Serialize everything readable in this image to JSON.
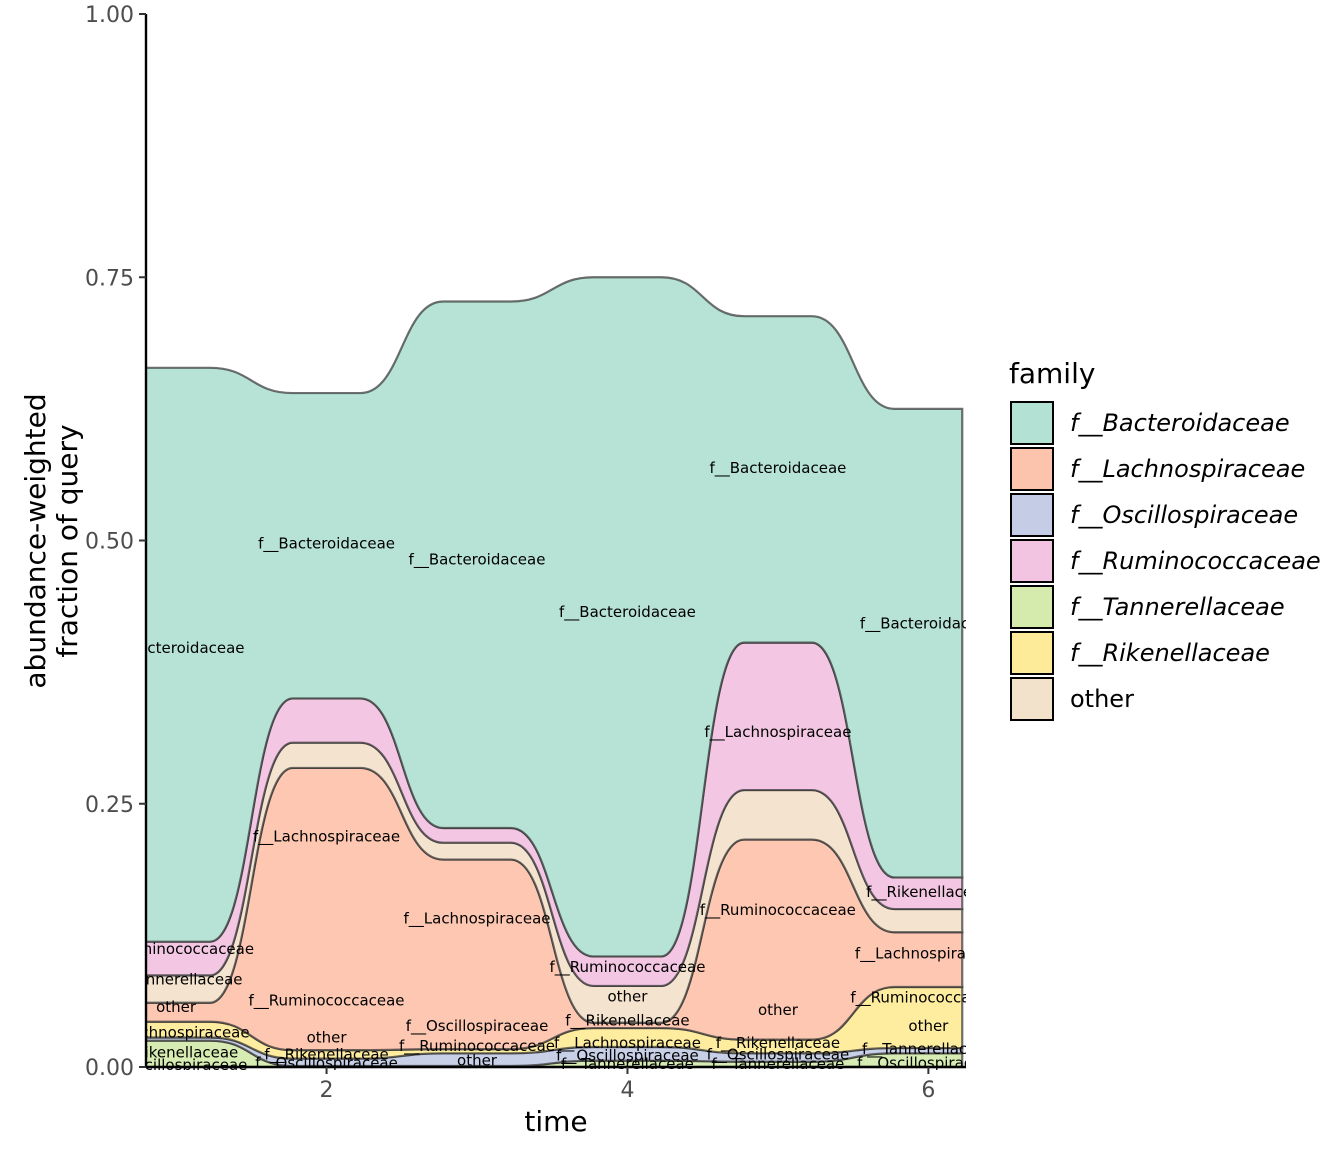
{
  "colors": {
    "f__Bacteroidaceae": "#b3e2d4",
    "f__Lachnospiraceae": "#fdc4ad",
    "f__Oscillospiraceae": "#c5cde6",
    "f__Ruminococcaceae": "#f2c4e2",
    "f__Tannerellaceae": "#d5ebae",
    "f__Rikenellaceae": "#feeb9a",
    "other": "#f3e2cb"
  },
  "chart_data": {
    "type": "area",
    "xlabel": "time",
    "ylabel_lines": [
      "abundance-weighted",
      "fraction of query"
    ],
    "xlim": [
      0.8,
      6.25
    ],
    "ylim": [
      0,
      1
    ],
    "x_ticks": [
      2,
      4,
      6
    ],
    "x_tick_labels": [
      "2",
      "4",
      "6"
    ],
    "y_ticks": [
      0,
      0.25,
      0.5,
      0.75,
      1
    ],
    "y_tick_labels": [
      "0.00",
      "0.25",
      "0.50",
      "0.75",
      "1.00"
    ],
    "x": [
      1,
      2,
      3,
      4,
      5,
      6
    ],
    "stack_order": [
      "f__Tannerellaceae",
      "f__Oscillospiraceae",
      "f__Rikenellaceae",
      "f__Lachnospiraceae",
      "other",
      "f__Ruminococcaceae",
      "f__Bacteroidaceae"
    ],
    "series": [
      {
        "name": "f__Bacteroidaceae",
        "values": [
          0.545,
          0.29,
          0.5,
          0.645,
          0.31,
          0.445
        ]
      },
      {
        "name": "f__Lachnospiraceae",
        "values": [
          0.018,
          0.268,
          0.18,
          0.005,
          0.19,
          0.052
        ]
      },
      {
        "name": "f__Oscillospiraceae",
        "values": [
          0.003,
          0.007,
          0.012,
          0.013,
          0.008,
          0.005
        ]
      },
      {
        "name": "f__Ruminococcaceae",
        "values": [
          0.032,
          0.042,
          0.014,
          0.028,
          0.14,
          0.03
        ]
      },
      {
        "name": "f__Tannerellaceae",
        "values": [
          0.025,
          0.001,
          0.001,
          0.006,
          0.005,
          0.013
        ]
      },
      {
        "name": "f__Rikenellaceae",
        "values": [
          0.015,
          0.008,
          0.004,
          0.018,
          0.013,
          0.058
        ]
      },
      {
        "name": "other",
        "values": [
          0.026,
          0.024,
          0.016,
          0.035,
          0.047,
          0.022
        ]
      }
    ],
    "flow_labels": [
      {
        "text": "f__Bacteroidaceae",
        "x": 1,
        "y": 0.398
      },
      {
        "text": "f__Bacteroidaceae",
        "x": 2,
        "y": 0.497
      },
      {
        "text": "f__Bacteroidaceae",
        "x": 3,
        "y": 0.482
      },
      {
        "text": "f__Bacteroidaceae",
        "x": 4,
        "y": 0.432
      },
      {
        "text": "f__Bacteroidaceae",
        "x": 5,
        "y": 0.569
      },
      {
        "text": "f__Bacteroidaceae",
        "x": 6,
        "y": 0.421
      },
      {
        "text": "f__Lachnospiraceae",
        "x": 2,
        "y": 0.219
      },
      {
        "text": "f__Lachnospiraceae",
        "x": 3,
        "y": 0.141
      },
      {
        "text": "f__Lachnospiraceae",
        "x": 5,
        "y": 0.318
      },
      {
        "text": "f__Lachnospiraceae",
        "x": 6,
        "y": 0.108
      },
      {
        "text": "f__Lachnospiraceae",
        "x": 1,
        "y": 0.033
      },
      {
        "text": "f__Lachnospiraceae",
        "x": 4,
        "y": 0.023
      },
      {
        "text": "f__Ruminococcaceae",
        "x": 1,
        "y": 0.112
      },
      {
        "text": "f__Ruminococcaceae",
        "x": 2,
        "y": 0.063
      },
      {
        "text": "f__Ruminococcaceae",
        "x": 3,
        "y": 0.02
      },
      {
        "text": "f__Ruminococcaceae",
        "x": 4,
        "y": 0.095
      },
      {
        "text": "f__Ruminococcaceae",
        "x": 5,
        "y": 0.149
      },
      {
        "text": "f__Ruminococcaceae",
        "x": 6,
        "y": 0.066
      },
      {
        "text": "f__Tannerellaceae",
        "x": 1,
        "y": 0.083
      },
      {
        "text": "f__Tannerellaceae",
        "x": 4,
        "y": 0.003
      },
      {
        "text": "f__Tannerellaceae",
        "x": 5,
        "y": 0.003
      },
      {
        "text": "f__Tannerellaceae",
        "x": 6,
        "y": 0.017
      },
      {
        "text": "f__Oscillospiraceae",
        "x": 1,
        "y": 0.002
      },
      {
        "text": "f__Oscillospiraceae",
        "x": 2,
        "y": 0.004
      },
      {
        "text": "f__Oscillospiraceae",
        "x": 3,
        "y": 0.039
      },
      {
        "text": "f__Oscillospiraceae",
        "x": 4,
        "y": 0.011
      },
      {
        "text": "f__Oscillospiraceae",
        "x": 5,
        "y": 0.012
      },
      {
        "text": "f__Oscillospiraceae",
        "x": 6,
        "y": 0.004
      },
      {
        "text": "f__Rikenellaceae",
        "x": 1,
        "y": 0.014
      },
      {
        "text": "f__Rikenellaceae",
        "x": 2,
        "y": 0.012
      },
      {
        "text": "f__Rikenellaceae",
        "x": 4,
        "y": 0.044
      },
      {
        "text": "f__Rikenellaceae",
        "x": 5,
        "y": 0.023
      },
      {
        "text": "f__Rikenellaceae",
        "x": 6,
        "y": 0.166
      },
      {
        "text": "other",
        "x": 1,
        "y": 0.057
      },
      {
        "text": "other",
        "x": 2,
        "y": 0.028
      },
      {
        "text": "other",
        "x": 3,
        "y": 0.006
      },
      {
        "text": "other",
        "x": 4,
        "y": 0.067
      },
      {
        "text": "other",
        "x": 5,
        "y": 0.054
      },
      {
        "text": "other",
        "x": 6,
        "y": 0.039
      }
    ],
    "legend": {
      "title": "family",
      "position": "right",
      "entries": [
        {
          "label": "f__Bacteroidaceae",
          "italic": true
        },
        {
          "label": "f__Lachnospiraceae",
          "italic": true
        },
        {
          "label": "f__Oscillospiraceae",
          "italic": true
        },
        {
          "label": "f__Ruminococcaceae",
          "italic": true
        },
        {
          "label": "f__Tannerellaceae",
          "italic": true
        },
        {
          "label": "f__Rikenellaceae",
          "italic": true
        },
        {
          "label": "other",
          "italic": false
        }
      ]
    }
  }
}
